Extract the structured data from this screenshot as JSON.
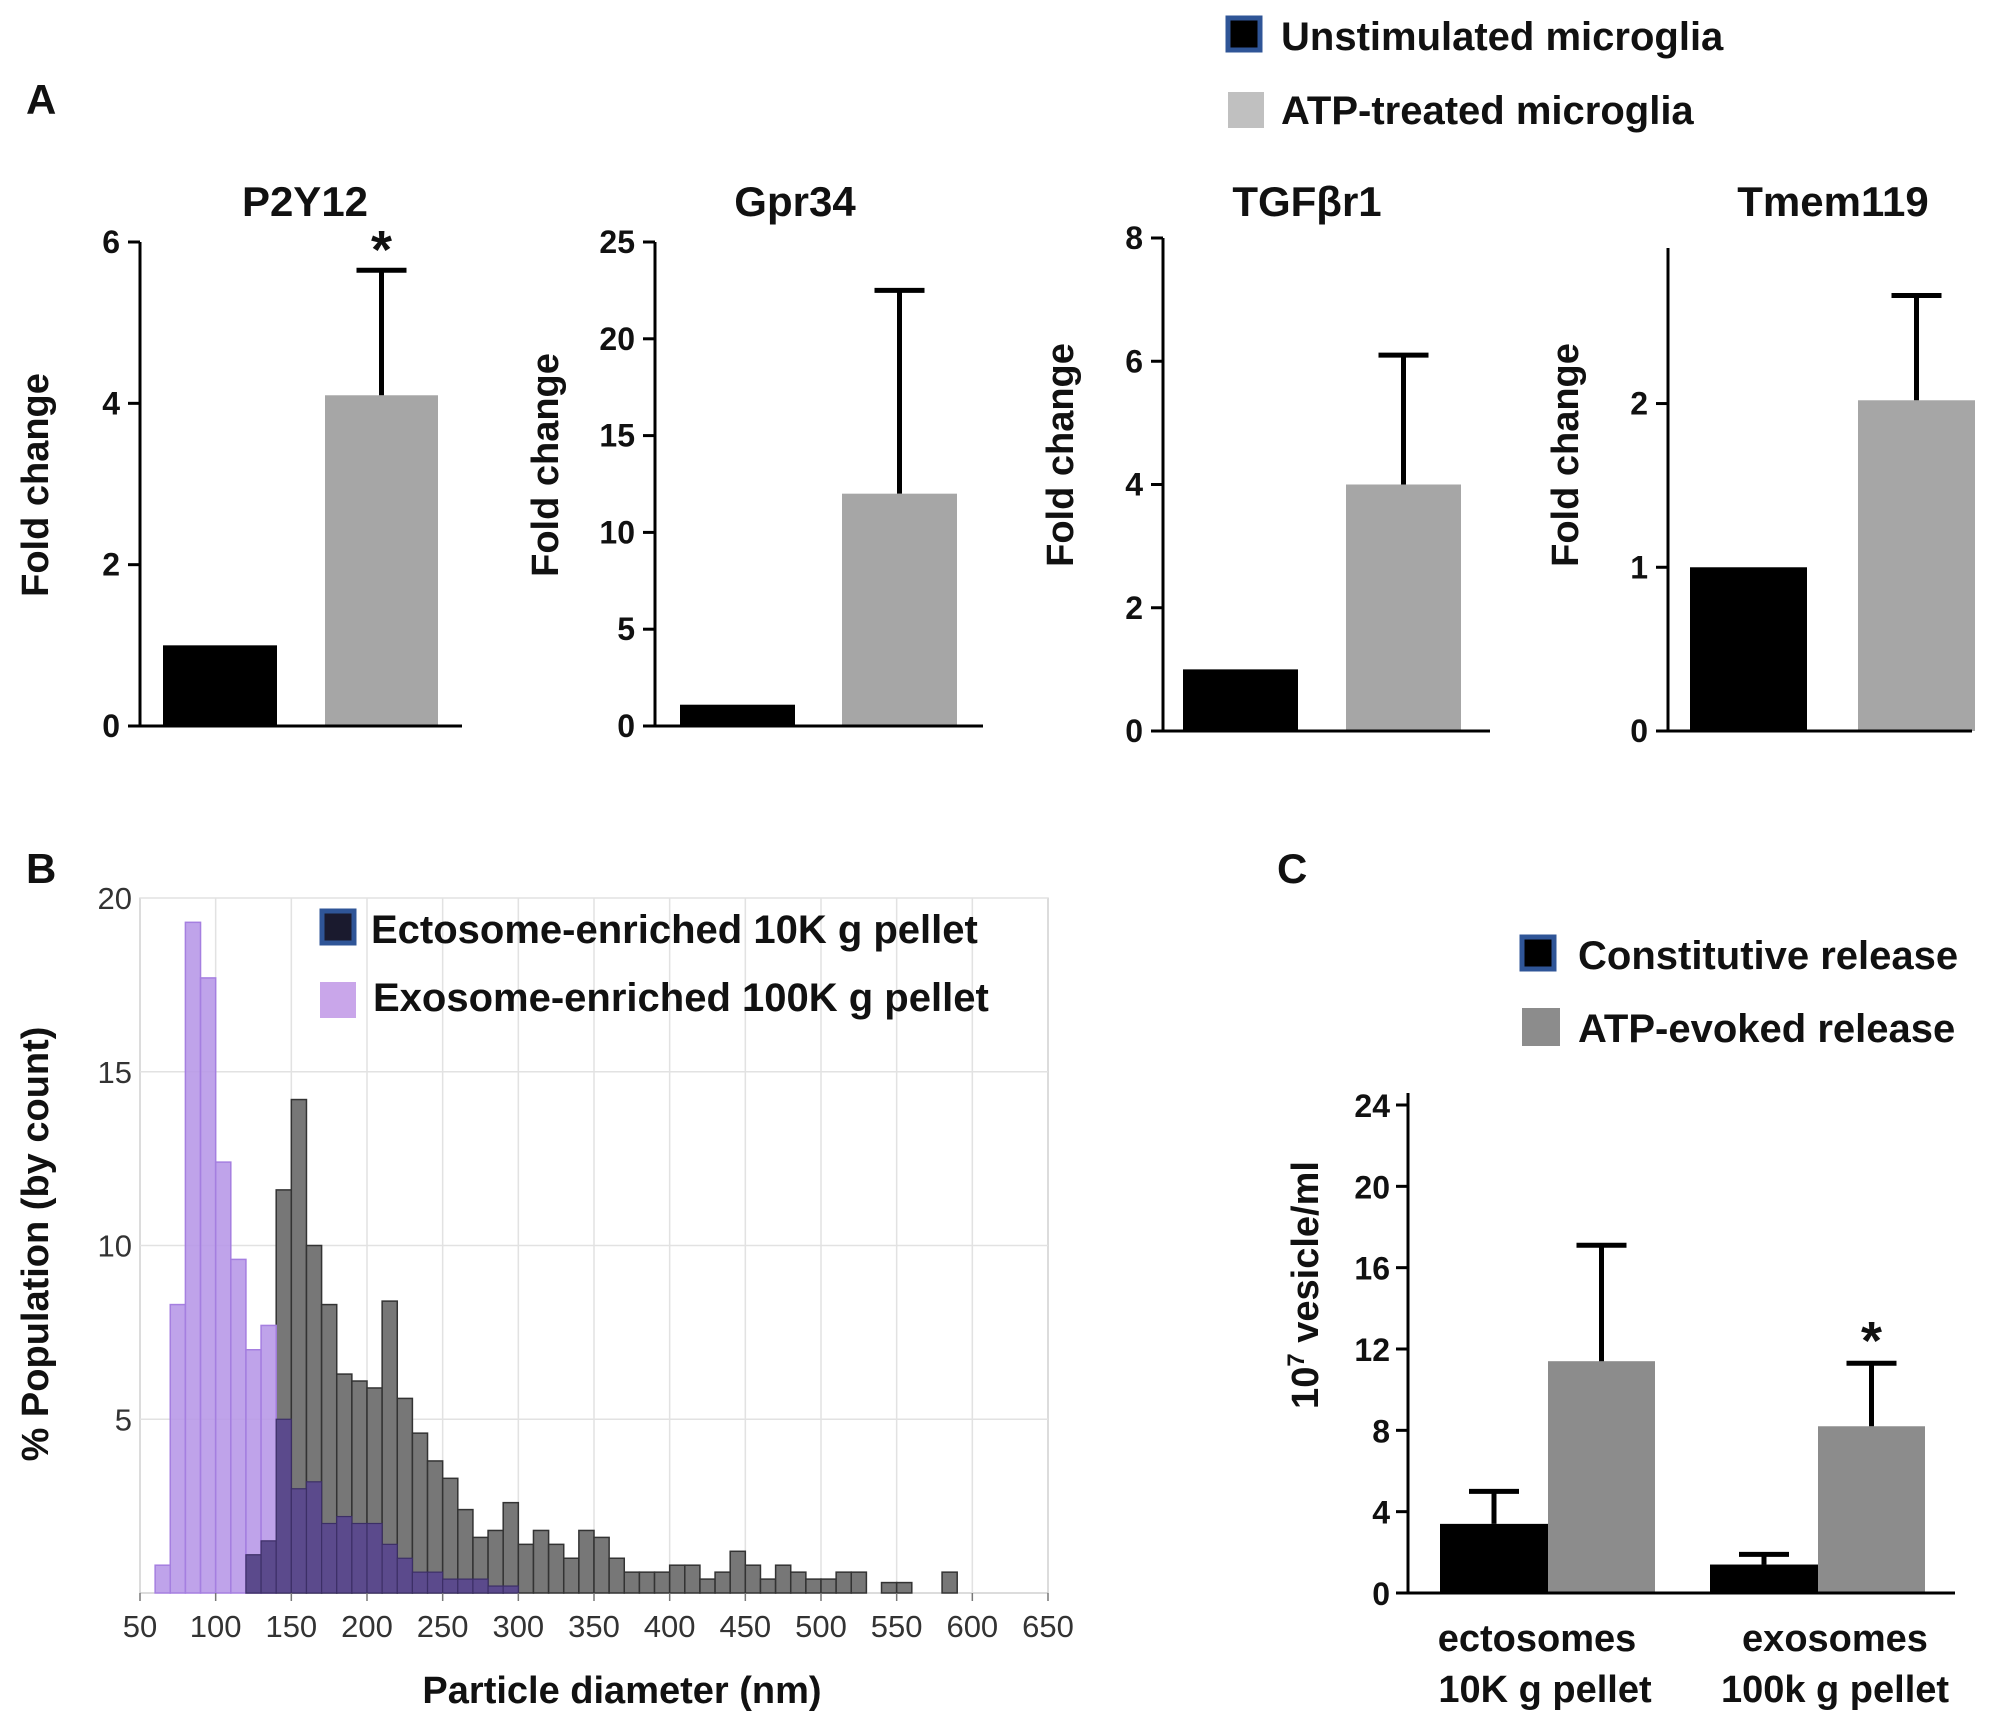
{
  "figure": {
    "panel_letters": {
      "a": "A",
      "b": "B",
      "c": "C"
    }
  },
  "colors": {
    "black_bar": "#000000",
    "gray_bar_a": "#a6a6a6",
    "gray_bar_c": "#8c8c8c",
    "legend_edge": "#2f5597",
    "hist_gray": "#777777",
    "hist_purple": "#b899e8",
    "hist_overlap": "#5b4a8c",
    "grid": "#e2e2e2"
  },
  "chart_data": [
    {
      "id": "A1",
      "type": "bar",
      "title": "P2Y12",
      "ylabel": "Fold change",
      "categories": [
        "Unstimulated microglia",
        "ATP-treated microglia"
      ],
      "values": [
        1.0,
        4.1
      ],
      "errors": [
        0,
        1.55
      ],
      "significance": [
        "",
        "*"
      ],
      "ylim": [
        0,
        6
      ],
      "yticks": [
        0,
        2,
        4,
        6
      ]
    },
    {
      "id": "A2",
      "type": "bar",
      "title": "Gpr34",
      "ylabel": "Fold change",
      "categories": [
        "Unstimulated microglia",
        "ATP-treated microglia"
      ],
      "values": [
        1.1,
        12.0
      ],
      "errors": [
        0,
        10.5
      ],
      "significance": [
        "",
        ""
      ],
      "ylim": [
        0,
        25
      ],
      "yticks": [
        0,
        5,
        10,
        15,
        20,
        25
      ]
    },
    {
      "id": "A3",
      "type": "bar",
      "title": "TGFβr1",
      "ylabel": "Fold change",
      "categories": [
        "Unstimulated microglia",
        "ATP-treated microglia"
      ],
      "values": [
        1.0,
        4.0
      ],
      "errors": [
        0,
        2.1
      ],
      "significance": [
        "",
        ""
      ],
      "ylim": [
        0,
        8
      ],
      "yticks": [
        0,
        2,
        4,
        6,
        8
      ]
    },
    {
      "id": "A4",
      "type": "bar",
      "title": "Tmem119",
      "ylabel": "Fold change",
      "categories": [
        "Unstimulated microglia",
        "ATP-treated microglia"
      ],
      "values": [
        1.0,
        2.02
      ],
      "errors": [
        0,
        0.64
      ],
      "significance": [
        "",
        ""
      ],
      "ylim": [
        0,
        2.95
      ],
      "yticks": [
        0,
        1,
        2
      ]
    },
    {
      "id": "A_legend",
      "legend": [
        "Unstimulated microglia",
        "ATP-treated microglia"
      ]
    },
    {
      "id": "B",
      "type": "histogram",
      "xlabel": "Particle diameter (nm)",
      "ylabel": "% Population (by count)",
      "xlim": [
        50,
        650
      ],
      "ylim": [
        0,
        20
      ],
      "xticks": [
        50,
        100,
        150,
        200,
        250,
        300,
        350,
        400,
        450,
        500,
        550,
        600,
        650
      ],
      "yticks": [
        5,
        10,
        15,
        20
      ],
      "bin_width": 10,
      "series": [
        {
          "name": "Ectosome-enriched 10K g pellet",
          "bins": [
            [
              125,
              1.1
            ],
            [
              135,
              1.5
            ],
            [
              145,
              11.6
            ],
            [
              155,
              14.2
            ],
            [
              165,
              10.0
            ],
            [
              175,
              8.3
            ],
            [
              185,
              6.3
            ],
            [
              195,
              6.1
            ],
            [
              205,
              5.9
            ],
            [
              215,
              8.4
            ],
            [
              225,
              5.6
            ],
            [
              235,
              4.6
            ],
            [
              245,
              3.8
            ],
            [
              255,
              3.3
            ],
            [
              265,
              2.4
            ],
            [
              275,
              1.6
            ],
            [
              285,
              1.8
            ],
            [
              295,
              2.6
            ],
            [
              305,
              1.4
            ],
            [
              315,
              1.8
            ],
            [
              325,
              1.4
            ],
            [
              335,
              1.0
            ],
            [
              345,
              1.8
            ],
            [
              355,
              1.6
            ],
            [
              365,
              1.0
            ],
            [
              375,
              0.6
            ],
            [
              385,
              0.6
            ],
            [
              395,
              0.6
            ],
            [
              405,
              0.8
            ],
            [
              415,
              0.8
            ],
            [
              425,
              0.4
            ],
            [
              435,
              0.6
            ],
            [
              445,
              1.2
            ],
            [
              455,
              0.8
            ],
            [
              465,
              0.4
            ],
            [
              475,
              0.8
            ],
            [
              485,
              0.6
            ],
            [
              495,
              0.4
            ],
            [
              505,
              0.4
            ],
            [
              515,
              0.6
            ],
            [
              525,
              0.6
            ],
            [
              545,
              0.3
            ],
            [
              555,
              0.3
            ],
            [
              585,
              0.6
            ]
          ]
        },
        {
          "name": "Exosome-enriched 100K g pellet",
          "bins": [
            [
              65,
              0.8
            ],
            [
              75,
              8.3
            ],
            [
              85,
              19.3
            ],
            [
              95,
              17.7
            ],
            [
              105,
              12.4
            ],
            [
              115,
              9.6
            ],
            [
              125,
              7.0
            ],
            [
              135,
              7.7
            ],
            [
              145,
              5.0
            ],
            [
              155,
              3.0
            ],
            [
              165,
              3.2
            ],
            [
              175,
              2.0
            ],
            [
              185,
              2.2
            ],
            [
              195,
              2.0
            ],
            [
              205,
              2.0
            ],
            [
              215,
              1.4
            ],
            [
              225,
              1.0
            ],
            [
              235,
              0.6
            ],
            [
              245,
              0.6
            ],
            [
              255,
              0.4
            ],
            [
              265,
              0.4
            ],
            [
              275,
              0.4
            ],
            [
              285,
              0.2
            ],
            [
              295,
              0.2
            ]
          ]
        }
      ]
    },
    {
      "id": "C",
      "type": "bar",
      "ylabel_prefix": "10",
      "ylabel_exp": "7",
      "ylabel_suffix": " vesicle/ml",
      "ylim": [
        0,
        24
      ],
      "yticks": [
        0,
        4,
        8,
        12,
        16,
        20,
        24
      ],
      "group_labels": [
        [
          "ectosomes",
          "10K g pellet"
        ],
        [
          "exosomes",
          "100k g pellet"
        ]
      ],
      "series": [
        {
          "name": "Constitutive release",
          "values": [
            3.4,
            1.4
          ],
          "errors": [
            1.6,
            0.5
          ],
          "significance": [
            "",
            ""
          ]
        },
        {
          "name": "ATP-evoked release",
          "values": [
            11.4,
            8.2
          ],
          "errors": [
            5.7,
            3.1
          ],
          "significance": [
            "",
            "*"
          ]
        }
      ]
    }
  ]
}
